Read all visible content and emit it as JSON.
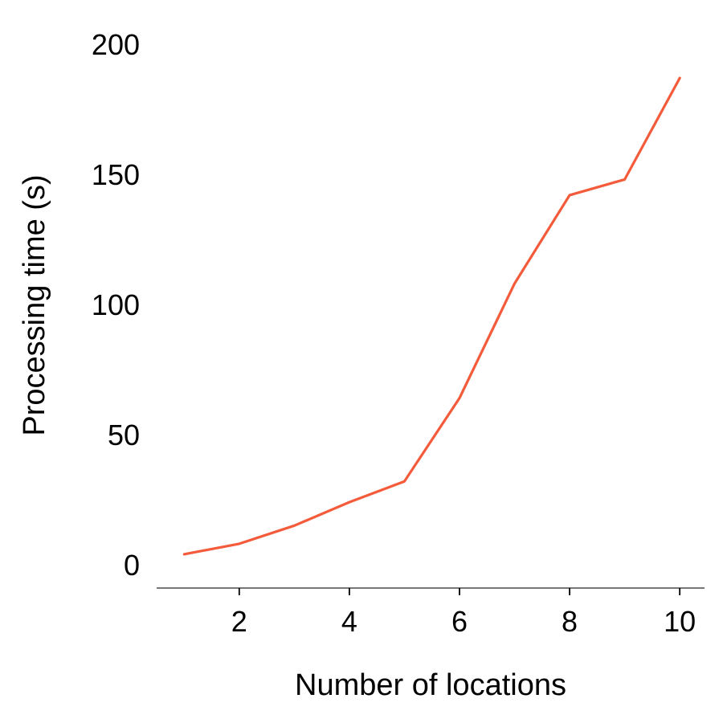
{
  "chart_data": {
    "type": "line",
    "title": "",
    "xlabel": "Number of locations",
    "ylabel": "Processing time (s)",
    "xlim": [
      0.5,
      10.45
    ],
    "ylim": [
      -9,
      200
    ],
    "xticks": [
      2,
      4,
      6,
      8,
      10
    ],
    "yticks": [
      0,
      50,
      100,
      150,
      200
    ],
    "grid": false,
    "series": [
      {
        "color": "#f45b3b",
        "x": [
          1,
          2,
          3,
          4,
          5,
          6,
          7,
          8,
          9,
          10
        ],
        "y": [
          4,
          8,
          15,
          24,
          32,
          64,
          108,
          142,
          148,
          187
        ]
      }
    ]
  }
}
